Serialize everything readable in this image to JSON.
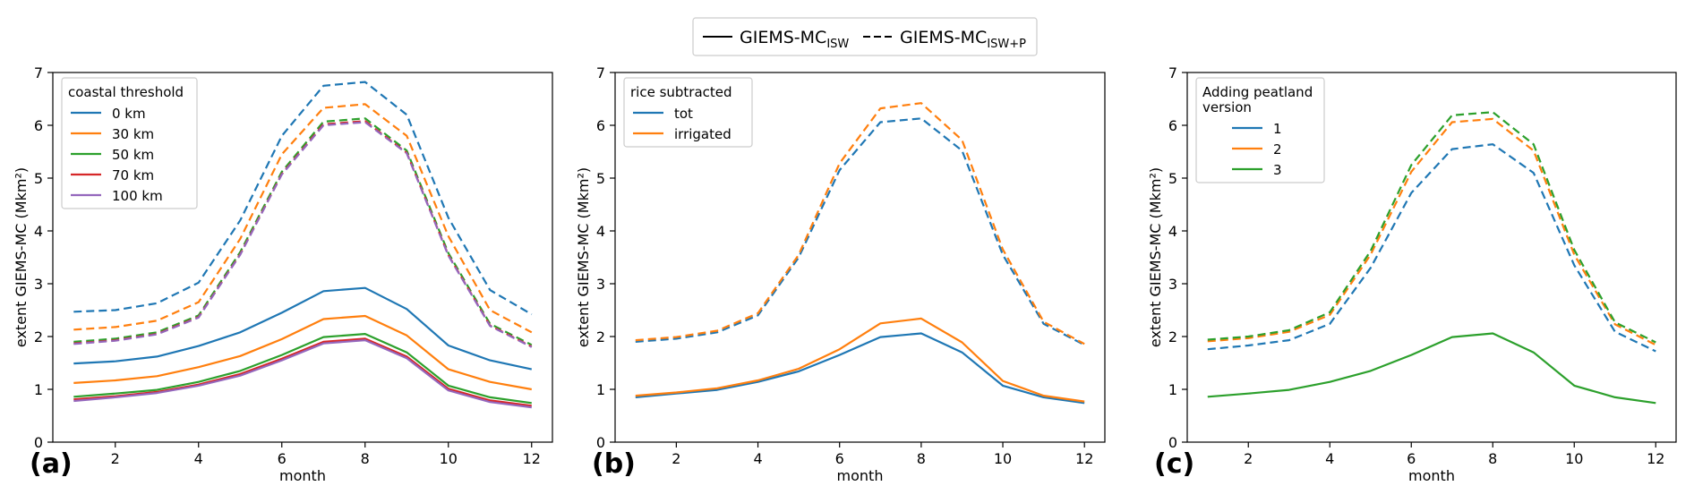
{
  "colors": {
    "blue": "#1f77b4",
    "orange": "#ff7f0e",
    "green": "#2ca02c",
    "red": "#d62728",
    "purple": "#9467bd"
  },
  "top_legend": {
    "solid_prefix": "GIEMS-MC",
    "solid_sub": "ISW",
    "dashed_prefix": "GIEMS-MC",
    "dashed_sub": "ISW+P"
  },
  "chart_data": [
    {
      "type": "line",
      "panel_label": "(a)",
      "xlabel": "month",
      "ylabel": "extent GIEMS-MC (Mkm²)",
      "xlim": [
        0.5,
        12.5
      ],
      "ylim": [
        0,
        7
      ],
      "xticks": [
        "2",
        "4",
        "6",
        "8",
        "10",
        "12"
      ],
      "yticks": [
        "0",
        "1",
        "2",
        "3",
        "4",
        "5",
        "6",
        "7"
      ],
      "legend": {
        "title": [
          "coastal threshold"
        ],
        "entries": [
          {
            "label": "0 km",
            "color": "#1f77b4"
          },
          {
            "label": "30 km",
            "color": "#ff7f0e"
          },
          {
            "label": "50 km",
            "color": "#2ca02c"
          },
          {
            "label": "70 km",
            "color": "#d62728"
          },
          {
            "label": "100 km",
            "color": "#9467bd"
          }
        ]
      },
      "x": [
        1,
        2,
        3,
        4,
        5,
        6,
        7,
        8,
        9,
        10,
        11,
        12
      ],
      "series": [
        {
          "name": "0 km ISW+P",
          "color": "#1f77b4",
          "dash": true,
          "values": [
            2.47,
            2.5,
            2.63,
            3.02,
            4.2,
            5.8,
            6.75,
            6.82,
            6.2,
            4.25,
            2.88,
            2.42
          ]
        },
        {
          "name": "30 km ISW+P",
          "color": "#ff7f0e",
          "dash": true,
          "values": [
            2.13,
            2.18,
            2.3,
            2.65,
            3.85,
            5.45,
            6.33,
            6.4,
            5.8,
            3.9,
            2.5,
            2.08
          ]
        },
        {
          "name": "50 km ISW+P",
          "color": "#2ca02c",
          "dash": true,
          "values": [
            1.9,
            1.96,
            2.08,
            2.4,
            3.6,
            5.12,
            6.07,
            6.13,
            5.52,
            3.58,
            2.24,
            1.84
          ]
        },
        {
          "name": "70 km ISW+P",
          "color": "#d62728",
          "dash": true,
          "values": [
            1.87,
            1.93,
            2.05,
            2.37,
            3.56,
            5.08,
            6.02,
            6.08,
            5.48,
            3.54,
            2.21,
            1.81
          ]
        },
        {
          "name": "100 km ISW+P",
          "color": "#9467bd",
          "dash": true,
          "values": [
            1.86,
            1.92,
            2.04,
            2.36,
            3.55,
            5.07,
            6.0,
            6.06,
            5.47,
            3.53,
            2.2,
            1.8
          ]
        },
        {
          "name": "0 km ISW",
          "color": "#1f77b4",
          "dash": false,
          "values": [
            1.49,
            1.53,
            1.62,
            1.82,
            2.08,
            2.45,
            2.86,
            2.92,
            2.52,
            1.83,
            1.55,
            1.38
          ]
        },
        {
          "name": "30 km ISW",
          "color": "#ff7f0e",
          "dash": false,
          "values": [
            1.12,
            1.17,
            1.25,
            1.42,
            1.63,
            1.95,
            2.33,
            2.39,
            2.02,
            1.38,
            1.14,
            1.0
          ]
        },
        {
          "name": "50 km ISW",
          "color": "#2ca02c",
          "dash": false,
          "values": [
            0.86,
            0.92,
            0.99,
            1.14,
            1.35,
            1.65,
            1.99,
            2.05,
            1.7,
            1.07,
            0.85,
            0.74
          ]
        },
        {
          "name": "70 km ISW",
          "color": "#d62728",
          "dash": false,
          "values": [
            0.81,
            0.87,
            0.95,
            1.09,
            1.29,
            1.58,
            1.9,
            1.96,
            1.62,
            1.01,
            0.79,
            0.69
          ]
        },
        {
          "name": "100 km ISW",
          "color": "#9467bd",
          "dash": false,
          "values": [
            0.78,
            0.85,
            0.93,
            1.07,
            1.26,
            1.55,
            1.87,
            1.93,
            1.59,
            0.98,
            0.76,
            0.66
          ]
        }
      ]
    },
    {
      "type": "line",
      "panel_label": "(b)",
      "xlabel": "month",
      "ylabel": "extent GIEMS-MC (Mkm²)",
      "xlim": [
        0.5,
        12.5
      ],
      "ylim": [
        0,
        7
      ],
      "xticks": [
        "2",
        "4",
        "6",
        "8",
        "10",
        "12"
      ],
      "yticks": [
        "0",
        "1",
        "2",
        "3",
        "4",
        "5",
        "6",
        "7"
      ],
      "legend": {
        "title": [
          "rice subtracted"
        ],
        "entries": [
          {
            "label": "tot",
            "color": "#1f77b4"
          },
          {
            "label": "irrigated",
            "color": "#ff7f0e"
          }
        ]
      },
      "x": [
        1,
        2,
        3,
        4,
        5,
        6,
        7,
        8,
        9,
        10,
        11,
        12
      ],
      "series": [
        {
          "name": "tot ISW+P",
          "color": "#1f77b4",
          "dash": true,
          "values": [
            1.9,
            1.96,
            2.08,
            2.4,
            3.5,
            5.15,
            6.06,
            6.13,
            5.52,
            3.55,
            2.24,
            1.84
          ]
        },
        {
          "name": "irrigated ISW+P",
          "color": "#ff7f0e",
          "dash": true,
          "values": [
            1.93,
            1.99,
            2.11,
            2.44,
            3.55,
            5.28,
            6.32,
            6.42,
            5.72,
            3.65,
            2.28,
            1.86
          ]
        },
        {
          "name": "tot ISW",
          "color": "#1f77b4",
          "dash": false,
          "values": [
            0.85,
            0.92,
            0.99,
            1.14,
            1.34,
            1.65,
            1.99,
            2.06,
            1.7,
            1.07,
            0.85,
            0.74
          ]
        },
        {
          "name": "irrigated ISW",
          "color": "#ff7f0e",
          "dash": false,
          "values": [
            0.88,
            0.94,
            1.02,
            1.17,
            1.39,
            1.76,
            2.25,
            2.34,
            1.89,
            1.16,
            0.88,
            0.77
          ]
        }
      ]
    },
    {
      "type": "line",
      "panel_label": "(c)",
      "xlabel": "month",
      "ylabel": "extent GIEMS-MC (Mkm²)",
      "xlim": [
        0.5,
        12.5
      ],
      "ylim": [
        0,
        7
      ],
      "xticks": [
        "2",
        "4",
        "6",
        "8",
        "10",
        "12"
      ],
      "yticks": [
        "0",
        "1",
        "2",
        "3",
        "4",
        "5",
        "6",
        "7"
      ],
      "legend": {
        "title": [
          "Adding peatland",
          "version"
        ],
        "entries": [
          {
            "label": "1",
            "color": "#1f77b4"
          },
          {
            "label": "2",
            "color": "#ff7f0e"
          },
          {
            "label": "3",
            "color": "#2ca02c"
          }
        ]
      },
      "x": [
        1,
        2,
        3,
        4,
        5,
        6,
        7,
        8,
        9,
        10,
        11,
        12
      ],
      "series": [
        {
          "name": "version 1 ISW+P",
          "color": "#1f77b4",
          "dash": true,
          "values": [
            1.76,
            1.83,
            1.93,
            2.24,
            3.3,
            4.72,
            5.55,
            5.64,
            5.1,
            3.35,
            2.09,
            1.72
          ]
        },
        {
          "name": "version 2 ISW+P",
          "color": "#ff7f0e",
          "dash": true,
          "values": [
            1.91,
            1.97,
            2.09,
            2.41,
            3.55,
            5.12,
            6.06,
            6.12,
            5.52,
            3.55,
            2.23,
            1.84
          ]
        },
        {
          "name": "version 3 ISW+P",
          "color": "#2ca02c",
          "dash": true,
          "values": [
            1.94,
            2.0,
            2.12,
            2.46,
            3.62,
            5.25,
            6.19,
            6.25,
            5.64,
            3.64,
            2.27,
            1.89
          ]
        },
        {
          "name": "ISW",
          "color": "#2ca02c",
          "dash": false,
          "values": [
            0.86,
            0.92,
            0.99,
            1.14,
            1.35,
            1.65,
            1.99,
            2.06,
            1.7,
            1.07,
            0.85,
            0.74
          ]
        }
      ]
    }
  ]
}
